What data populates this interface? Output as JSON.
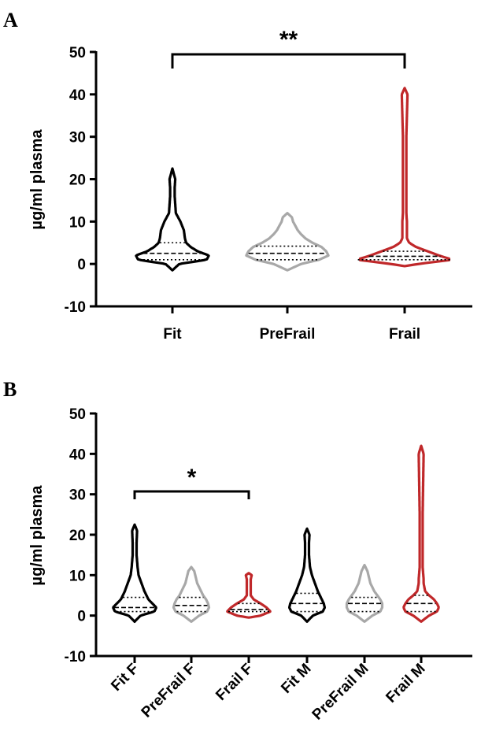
{
  "chart_data": [
    {
      "type": "violin",
      "panel_label": "A",
      "ylabel": "µg/ml plasma",
      "ylim": [
        -10,
        50
      ],
      "yticks": [
        -10,
        0,
        10,
        20,
        30,
        40,
        50
      ],
      "categories": [
        "Fit",
        "PreFrail",
        "Frail"
      ],
      "colors": [
        "#000000",
        "#a8a8a8",
        "#c0282a"
      ],
      "series": [
        {
          "category": "Fit",
          "min": -1.5,
          "max": 22.5,
          "q1": 1.0,
          "median": 2.5,
          "q3": 5.0,
          "profile": [
            [
              -1.5,
              0
            ],
            [
              0,
              6
            ],
            [
              1,
              30
            ],
            [
              2,
              32
            ],
            [
              3,
              22
            ],
            [
              4,
              16
            ],
            [
              5,
              12
            ],
            [
              6,
              11
            ],
            [
              8,
              10
            ],
            [
              10,
              7
            ],
            [
              12,
              3
            ],
            [
              14,
              2.5
            ],
            [
              16,
              2
            ],
            [
              18,
              2
            ],
            [
              20,
              2.5
            ],
            [
              22.5,
              0
            ]
          ]
        },
        {
          "category": "PreFrail",
          "min": -1.5,
          "max": 12,
          "q1": 1.0,
          "median": 2.5,
          "q3": 4.2,
          "profile": [
            [
              -1.5,
              0
            ],
            [
              0,
              12
            ],
            [
              1,
              28
            ],
            [
              2,
              36
            ],
            [
              3,
              34
            ],
            [
              4,
              30
            ],
            [
              5,
              22
            ],
            [
              6,
              16
            ],
            [
              7,
              12
            ],
            [
              8,
              9
            ],
            [
              9,
              7
            ],
            [
              10,
              5
            ],
            [
              11,
              4
            ],
            [
              12,
              0
            ]
          ]
        },
        {
          "category": "Frail",
          "min": -0.5,
          "max": 41.5,
          "q1": 1.0,
          "median": 1.8,
          "q3": 3.0,
          "profile": [
            [
              -0.5,
              0
            ],
            [
              0,
              12
            ],
            [
              1,
              42
            ],
            [
              2,
              30
            ],
            [
              3,
              20
            ],
            [
              4,
              10
            ],
            [
              5,
              4
            ],
            [
              6,
              2
            ],
            [
              8,
              2
            ],
            [
              10,
              2
            ],
            [
              12,
              1.5
            ],
            [
              20,
              1.5
            ],
            [
              30,
              1.5
            ],
            [
              40,
              2.5
            ],
            [
              41.5,
              0
            ]
          ]
        }
      ],
      "significance": [
        {
          "from": "Fit",
          "to": "Frail",
          "label": "**"
        }
      ]
    },
    {
      "type": "violin",
      "panel_label": "B",
      "ylabel": "µg/ml plasma",
      "ylim": [
        -10,
        50
      ],
      "yticks": [
        -10,
        0,
        10,
        20,
        30,
        40,
        50
      ],
      "categories": [
        "Fit F",
        "PreFrail F",
        "Frail F",
        "Fit M",
        "PreFrail M",
        "Frail M"
      ],
      "colors": [
        "#000000",
        "#a8a8a8",
        "#c0282a",
        "#000000",
        "#a8a8a8",
        "#c0282a"
      ],
      "series": [
        {
          "category": "Fit F",
          "min": -1.5,
          "max": 22.5,
          "q1": 1.0,
          "median": 2.0,
          "q3": 4.5,
          "profile": [
            [
              -1.5,
              0
            ],
            [
              0,
              6
            ],
            [
              1,
              20
            ],
            [
              2,
              22
            ],
            [
              3,
              18
            ],
            [
              4,
              14
            ],
            [
              5,
              12
            ],
            [
              6,
              10
            ],
            [
              8,
              7
            ],
            [
              10,
              4
            ],
            [
              12,
              3
            ],
            [
              15,
              2
            ],
            [
              18,
              2
            ],
            [
              21,
              2.5
            ],
            [
              22.5,
              0
            ]
          ]
        },
        {
          "category": "PreFrail F",
          "min": -1.5,
          "max": 12,
          "q1": 1.0,
          "median": 2.5,
          "q3": 4.5,
          "profile": [
            [
              -1.5,
              0
            ],
            [
              0,
              8
            ],
            [
              1,
              16
            ],
            [
              2,
              18
            ],
            [
              3,
              17
            ],
            [
              4,
              15
            ],
            [
              5,
              12
            ],
            [
              6,
              10
            ],
            [
              7,
              8
            ],
            [
              8,
              6
            ],
            [
              9,
              5
            ],
            [
              10,
              4
            ],
            [
              11,
              3
            ],
            [
              12,
              0
            ]
          ]
        },
        {
          "category": "Frail F",
          "min": -0.5,
          "max": 10.5,
          "q1": 1.0,
          "median": 1.5,
          "q3": 3.0,
          "profile": [
            [
              -0.5,
              0
            ],
            [
              0,
              12
            ],
            [
              1,
              22
            ],
            [
              2,
              18
            ],
            [
              3,
              12
            ],
            [
              4,
              5
            ],
            [
              5,
              2
            ],
            [
              7,
              2
            ],
            [
              9,
              2
            ],
            [
              10,
              3
            ],
            [
              10.5,
              0
            ]
          ]
        },
        {
          "category": "Fit M",
          "min": -1.5,
          "max": 21.5,
          "q1": 1.0,
          "median": 3.0,
          "q3": 5.5,
          "profile": [
            [
              -1.5,
              0
            ],
            [
              0,
              6
            ],
            [
              1,
              16
            ],
            [
              2,
              18
            ],
            [
              3,
              17
            ],
            [
              4,
              15
            ],
            [
              5,
              13
            ],
            [
              6,
              11
            ],
            [
              8,
              8
            ],
            [
              10,
              5
            ],
            [
              12,
              3
            ],
            [
              15,
              2
            ],
            [
              18,
              2
            ],
            [
              20,
              2.5
            ],
            [
              21.5,
              0
            ]
          ]
        },
        {
          "category": "PreFrail M",
          "min": -1.5,
          "max": 12.5,
          "q1": 1.0,
          "median": 3.0,
          "q3": 4.5,
          "profile": [
            [
              -1.5,
              0
            ],
            [
              0,
              8
            ],
            [
              1,
              16
            ],
            [
              2,
              18
            ],
            [
              3,
              18
            ],
            [
              4,
              16
            ],
            [
              5,
              13
            ],
            [
              6,
              10
            ],
            [
              7,
              8
            ],
            [
              8,
              6
            ],
            [
              9,
              5
            ],
            [
              10,
              4
            ],
            [
              11,
              3
            ],
            [
              12.5,
              0
            ]
          ]
        },
        {
          "category": "Frail M",
          "min": -1.5,
          "max": 42,
          "q1": 1.0,
          "median": 3.0,
          "q3": 5.0,
          "profile": [
            [
              -1.5,
              0
            ],
            [
              0,
              8
            ],
            [
              1,
              16
            ],
            [
              2,
              18
            ],
            [
              3,
              16
            ],
            [
              4,
              13
            ],
            [
              5,
              8
            ],
            [
              6,
              4
            ],
            [
              8,
              2.5
            ],
            [
              9,
              2.5
            ],
            [
              12,
              1.5
            ],
            [
              25,
              1.5
            ],
            [
              40,
              2.5
            ],
            [
              42,
              0
            ]
          ]
        }
      ],
      "significance": [
        {
          "from": "Fit F",
          "to": "Frail F",
          "label": "*"
        }
      ]
    }
  ]
}
